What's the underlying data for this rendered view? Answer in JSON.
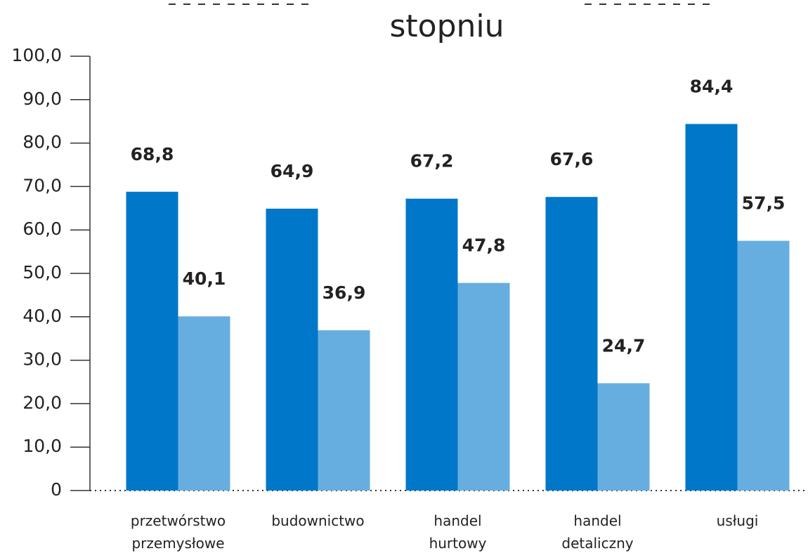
{
  "chart_data": {
    "type": "bar",
    "title": "stopniu",
    "categories": [
      "przetwórstwo przemysłowe",
      "budownictwo",
      "handel hurtowy",
      "handel detaliczny",
      "usługi"
    ],
    "series": [
      {
        "color": "#0077c8",
        "values": [
          68.8,
          64.9,
          67.2,
          67.6,
          84.4
        ],
        "value_labels": [
          "68,8",
          "64,9",
          "67,2",
          "67,6",
          "84,4"
        ]
      },
      {
        "color": "#66aee0",
        "values": [
          40.1,
          36.9,
          47.8,
          24.7,
          57.5
        ],
        "value_labels": [
          "40,1",
          "36,9",
          "47,8",
          "24,7",
          "57,5"
        ]
      }
    ],
    "ylim": [
      0,
      100
    ],
    "yticks": [
      0,
      {
        "value": 10,
        "label": "10,0"
      },
      {
        "value": 20,
        "label": "20,0"
      },
      {
        "value": 30,
        "label": "30,0"
      },
      {
        "value": 40,
        "label": "40,0"
      },
      {
        "value": 50,
        "label": "50,0"
      },
      {
        "value": 60,
        "label": "60,0"
      },
      {
        "value": 70,
        "label": "70,0"
      },
      {
        "value": 80,
        "label": "80,0"
      },
      {
        "value": 90,
        "label": "90,0"
      },
      {
        "value": 100,
        "label": "100,0"
      }
    ]
  }
}
